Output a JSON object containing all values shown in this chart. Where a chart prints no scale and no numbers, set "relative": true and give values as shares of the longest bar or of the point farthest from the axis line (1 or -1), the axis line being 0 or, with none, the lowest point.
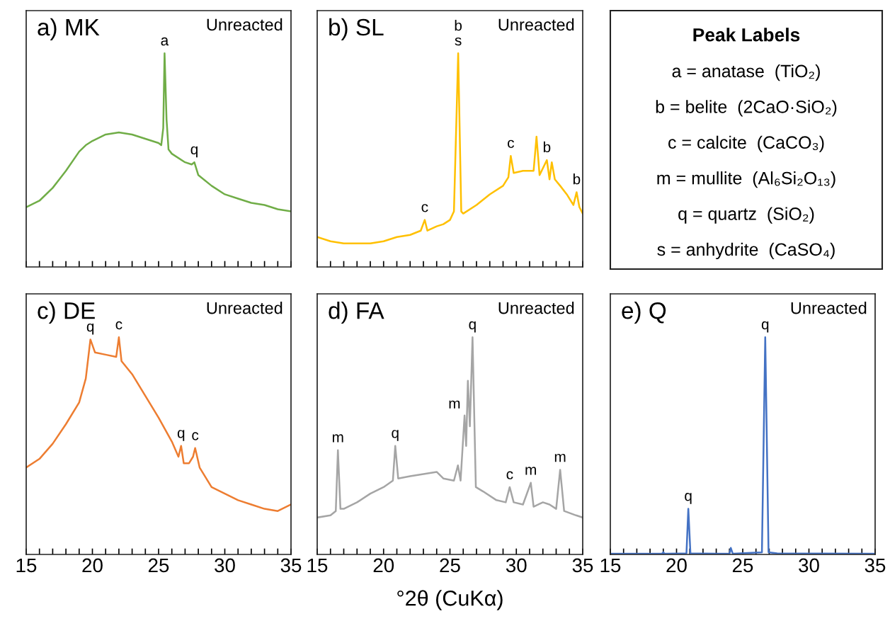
{
  "chart_data": [
    {
      "type": "line",
      "title": "a) MK",
      "subtitle": "Unreacted",
      "relative": true,
      "xlim": [
        15,
        35
      ],
      "tick_labels": false,
      "xticks": [
        15,
        {
          "value": 16,
          "label": null
        },
        {
          "value": 17,
          "label": null
        },
        {
          "value": 18,
          "label": null
        },
        {
          "value": 19,
          "label": null
        },
        20,
        {
          "value": 21,
          "label": null
        },
        {
          "value": 22,
          "label": null
        },
        {
          "value": 23,
          "label": null
        },
        {
          "value": 24,
          "label": null
        },
        25,
        {
          "value": 26,
          "label": null
        },
        {
          "value": 27,
          "label": null
        },
        {
          "value": 28,
          "label": null
        },
        {
          "value": 29,
          "label": null
        },
        30,
        {
          "value": 31,
          "label": null
        },
        {
          "value": 32,
          "label": null
        },
        {
          "value": 33,
          "label": null
        },
        {
          "value": 34,
          "label": null
        },
        35
      ],
      "series": [
        {
          "color": "#70ad47",
          "x": [
            15,
            16,
            17,
            18,
            19,
            19.5,
            20,
            21,
            22,
            23,
            24,
            25,
            25.2,
            25.35,
            25.45,
            25.6,
            25.75,
            26,
            27,
            27.5,
            27.7,
            28,
            29,
            30,
            31,
            32,
            33,
            34,
            35
          ],
          "values": [
            0.28,
            0.31,
            0.37,
            0.45,
            0.54,
            0.57,
            0.59,
            0.62,
            0.63,
            0.62,
            0.6,
            0.58,
            0.57,
            0.65,
            1.0,
            0.69,
            0.55,
            0.53,
            0.49,
            0.48,
            0.49,
            0.43,
            0.38,
            0.34,
            0.32,
            0.3,
            0.29,
            0.27,
            0.26
          ]
        }
      ],
      "annotations": [
        {
          "text": "a",
          "x": 25.45,
          "y": 1.0
        },
        {
          "text": "q",
          "x": 27.7,
          "y": 0.49
        }
      ]
    },
    {
      "type": "line",
      "title": "b) SL",
      "subtitle": "Unreacted",
      "relative": true,
      "xlim": [
        15,
        35
      ],
      "tick_labels": false,
      "xticks": [
        15,
        {
          "value": 16,
          "label": null
        },
        {
          "value": 17,
          "label": null
        },
        {
          "value": 18,
          "label": null
        },
        {
          "value": 19,
          "label": null
        },
        20,
        {
          "value": 21,
          "label": null
        },
        {
          "value": 22,
          "label": null
        },
        {
          "value": 23,
          "label": null
        },
        {
          "value": 24,
          "label": null
        },
        25,
        {
          "value": 26,
          "label": null
        },
        {
          "value": 27,
          "label": null
        },
        {
          "value": 28,
          "label": null
        },
        {
          "value": 29,
          "label": null
        },
        30,
        {
          "value": 31,
          "label": null
        },
        {
          "value": 32,
          "label": null
        },
        {
          "value": 33,
          "label": null
        },
        {
          "value": 34,
          "label": null
        },
        35
      ],
      "series": [
        {
          "color": "#ffc000",
          "x": [
            15,
            16,
            17,
            18,
            19,
            20,
            21,
            22,
            22.8,
            23.1,
            23.3,
            24,
            24.5,
            25,
            25.3,
            25.62,
            25.85,
            26,
            27,
            28,
            29,
            29.4,
            29.58,
            29.8,
            30.5,
            31,
            31.3,
            31.52,
            31.75,
            32.3,
            32.5,
            32.67,
            32.9,
            33.3,
            33.8,
            34.3,
            34.54,
            34.75,
            35
          ],
          "values": [
            0.14,
            0.12,
            0.11,
            0.11,
            0.11,
            0.12,
            0.14,
            0.15,
            0.17,
            0.22,
            0.17,
            0.19,
            0.2,
            0.22,
            0.26,
            1.0,
            0.26,
            0.25,
            0.29,
            0.34,
            0.38,
            0.42,
            0.52,
            0.44,
            0.45,
            0.45,
            0.45,
            0.61,
            0.43,
            0.5,
            0.41,
            0.49,
            0.41,
            0.38,
            0.34,
            0.29,
            0.35,
            0.28,
            0.25
          ]
        }
      ],
      "annotations": [
        {
          "text": "b\ns",
          "x": 25.62,
          "y": 1.0
        },
        {
          "text": "c",
          "x": 23.1,
          "y": 0.22
        },
        {
          "text": "c",
          "x": 29.58,
          "y": 0.52
        },
        {
          "text": "b",
          "x": 32.3,
          "y": 0.5
        },
        {
          "text": "b",
          "x": 34.54,
          "y": 0.35
        }
      ]
    },
    {
      "type": "other",
      "title": "Peak Labels",
      "annotations": [
        "a = anatase  (TiO₂)",
        "b = belite  (2CaO·SiO₂)",
        "c = calcite  (CaCO₃)",
        "m = mullite  (Al₆Si₂O₁₃)",
        "q = quartz  (SiO₂)",
        "s = anhydrite  (CaSO₄)"
      ]
    },
    {
      "type": "line",
      "title": "c) DE",
      "subtitle": "Unreacted",
      "relative": true,
      "xlim": [
        15,
        35
      ],
      "tick_labels": "x",
      "xticks": [
        15,
        {
          "value": 16,
          "label": null
        },
        {
          "value": 17,
          "label": null
        },
        {
          "value": 18,
          "label": null
        },
        {
          "value": 19,
          "label": null
        },
        20,
        {
          "value": 21,
          "label": null
        },
        {
          "value": 22,
          "label": null
        },
        {
          "value": 23,
          "label": null
        },
        {
          "value": 24,
          "label": null
        },
        25,
        {
          "value": 26,
          "label": null
        },
        {
          "value": 27,
          "label": null
        },
        {
          "value": 28,
          "label": null
        },
        {
          "value": 29,
          "label": null
        },
        30,
        {
          "value": 31,
          "label": null
        },
        {
          "value": 32,
          "label": null
        },
        {
          "value": 33,
          "label": null
        },
        {
          "value": 34,
          "label": null
        },
        35
      ],
      "series": [
        {
          "color": "#ed7d31",
          "x": [
            15,
            16,
            17,
            18,
            19,
            19.5,
            19.85,
            20.2,
            21,
            21.8,
            22.0,
            22.2,
            23,
            24,
            25,
            26,
            26.5,
            26.7,
            26.9,
            27.3,
            27.6,
            27.76,
            28.1,
            29,
            30,
            31,
            32,
            33,
            34,
            35
          ],
          "values": [
            0.4,
            0.44,
            0.51,
            0.6,
            0.7,
            0.81,
            0.99,
            0.93,
            0.92,
            0.91,
            1.0,
            0.89,
            0.83,
            0.73,
            0.63,
            0.52,
            0.45,
            0.5,
            0.42,
            0.42,
            0.45,
            0.49,
            0.4,
            0.31,
            0.28,
            0.25,
            0.23,
            0.21,
            0.2,
            0.23
          ]
        }
      ],
      "annotations": [
        {
          "text": "q",
          "x": 19.85,
          "y": 0.99
        },
        {
          "text": "c",
          "x": 22.0,
          "y": 1.0
        },
        {
          "text": "q",
          "x": 26.7,
          "y": 0.5
        },
        {
          "text": "c",
          "x": 27.76,
          "y": 0.49
        }
      ]
    },
    {
      "type": "line",
      "title": "d) FA",
      "subtitle": "Unreacted",
      "xlabel": "°2θ (CuKα)",
      "relative": true,
      "xlim": [
        15,
        35
      ],
      "tick_labels": "x",
      "xticks": [
        15,
        {
          "value": 16,
          "label": null
        },
        {
          "value": 17,
          "label": null
        },
        {
          "value": 18,
          "label": null
        },
        {
          "value": 19,
          "label": null
        },
        20,
        {
          "value": 21,
          "label": null
        },
        {
          "value": 22,
          "label": null
        },
        {
          "value": 23,
          "label": null
        },
        {
          "value": 24,
          "label": null
        },
        25,
        {
          "value": 26,
          "label": null
        },
        {
          "value": 27,
          "label": null
        },
        {
          "value": 28,
          "label": null
        },
        {
          "value": 29,
          "label": null
        },
        30,
        {
          "value": 31,
          "label": null
        },
        {
          "value": 32,
          "label": null
        },
        {
          "value": 33,
          "label": null
        },
        {
          "value": 34,
          "label": null
        },
        35
      ],
      "series": [
        {
          "color": "#a5a5a5",
          "x": [
            15,
            16,
            16.4,
            16.56,
            16.75,
            17,
            18,
            19,
            20,
            20.7,
            20.88,
            21.1,
            22,
            23,
            24,
            24.5,
            25.3,
            25.6,
            25.8,
            26.1,
            26.22,
            26.35,
            26.5,
            26.7,
            26.95,
            27.5,
            28.5,
            29.2,
            29.5,
            29.8,
            30.5,
            31.09,
            31.3,
            32,
            32.5,
            33.0,
            33.3,
            33.6,
            34.5,
            35
          ],
          "values": [
            0.17,
            0.18,
            0.2,
            0.48,
            0.21,
            0.21,
            0.24,
            0.28,
            0.31,
            0.34,
            0.5,
            0.35,
            0.36,
            0.37,
            0.38,
            0.35,
            0.34,
            0.41,
            0.34,
            0.64,
            0.5,
            0.8,
            0.59,
            1.0,
            0.31,
            0.29,
            0.25,
            0.24,
            0.31,
            0.24,
            0.23,
            0.33,
            0.22,
            0.24,
            0.23,
            0.21,
            0.39,
            0.2,
            0.18,
            0.17
          ]
        }
      ],
      "annotations": [
        {
          "text": "m",
          "x": 16.56,
          "y": 0.48
        },
        {
          "text": "q",
          "x": 20.88,
          "y": 0.5
        },
        {
          "text": "m",
          "x": 26.1,
          "y": 0.64
        },
        {
          "text": "q",
          "x": 26.7,
          "y": 1.0
        },
        {
          "text": "c",
          "x": 29.5,
          "y": 0.31
        },
        {
          "text": "m",
          "x": 31.09,
          "y": 0.33
        },
        {
          "text": "m",
          "x": 33.3,
          "y": 0.39
        }
      ]
    },
    {
      "type": "line",
      "title": "e) Q",
      "subtitle": "Unreacted",
      "relative": true,
      "xlim": [
        15,
        35
      ],
      "tick_labels": "x",
      "xticks": [
        15,
        {
          "value": 16,
          "label": null
        },
        {
          "value": 17,
          "label": null
        },
        {
          "value": 18,
          "label": null
        },
        {
          "value": 19,
          "label": null
        },
        20,
        {
          "value": 21,
          "label": null
        },
        {
          "value": 22,
          "label": null
        },
        {
          "value": 23,
          "label": null
        },
        {
          "value": 24,
          "label": null
        },
        25,
        {
          "value": 26,
          "label": null
        },
        {
          "value": 27,
          "label": null
        },
        {
          "value": 28,
          "label": null
        },
        {
          "value": 29,
          "label": null
        },
        30,
        {
          "value": 31,
          "label": null
        },
        {
          "value": 32,
          "label": null
        },
        {
          "value": 33,
          "label": null
        },
        {
          "value": 34,
          "label": null
        },
        35
      ],
      "series": [
        {
          "color": "#4472c4",
          "x": [
            15,
            18.9,
            19.0,
            19.1,
            20.75,
            20.89,
            21.05,
            24.0,
            24.1,
            24.25,
            26.45,
            26.7,
            26.95,
            27.6,
            35
          ],
          "values": [
            0.003,
            0.003,
            0.01,
            0.003,
            0.005,
            0.21,
            0.005,
            0.003,
            0.03,
            0.003,
            0.01,
            1.0,
            0.01,
            0.005,
            0.003
          ]
        }
      ],
      "annotations": [
        {
          "text": "q",
          "x": 20.89,
          "y": 0.21
        },
        {
          "text": "q",
          "x": 26.7,
          "y": 1.0
        }
      ]
    }
  ]
}
